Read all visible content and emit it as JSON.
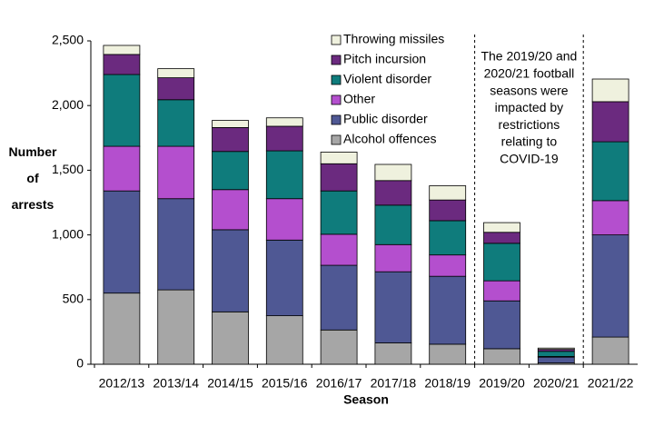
{
  "chart_data": {
    "type": "stacked_bar",
    "x_label": "Season",
    "y_label": "Number of arrests",
    "categories": [
      "2012/13",
      "2013/14",
      "2014/15",
      "2015/16",
      "2016/17",
      "2017/18",
      "2018/19",
      "2019/20",
      "2020/21",
      "2021/22"
    ],
    "series": [
      {
        "name": "Alcohol offences",
        "color": "#a6a6a6",
        "values": [
          550,
          575,
          405,
          375,
          265,
          165,
          155,
          120,
          10,
          210
        ]
      },
      {
        "name": "Public disorder",
        "color": "#4f5894",
        "values": [
          790,
          705,
          635,
          585,
          500,
          550,
          525,
          370,
          45,
          790
        ]
      },
      {
        "name": "Other",
        "color": "#b44fce",
        "values": [
          345,
          405,
          310,
          320,
          240,
          210,
          165,
          155,
          5,
          265
        ]
      },
      {
        "name": "Violent disorder",
        "color": "#0f7c7c",
        "values": [
          555,
          360,
          295,
          370,
          335,
          305,
          265,
          290,
          40,
          455
        ]
      },
      {
        "name": "Pitch incursion",
        "color": "#6b2a7f",
        "values": [
          155,
          170,
          185,
          190,
          210,
          190,
          160,
          85,
          15,
          310
        ]
      },
      {
        "name": "Throwing missiles",
        "color": "#eff1de",
        "values": [
          70,
          70,
          55,
          65,
          90,
          125,
          110,
          75,
          10,
          175
        ]
      }
    ],
    "ylim": [
      0,
      2500
    ],
    "yticks": [
      0,
      500,
      {
        "value": 1000,
        "label": "1,000"
      },
      {
        "value": 1500,
        "label": "1,500"
      },
      {
        "value": 2000,
        "label": "2,000"
      },
      {
        "value": 2500,
        "label": "2,500"
      }
    ],
    "annotation": [
      "The 2019/20 and",
      "2020/21 football",
      "seasons were",
      "impacted by",
      "restrictions",
      "relating to",
      "COVID-19"
    ],
    "legend": "top"
  }
}
